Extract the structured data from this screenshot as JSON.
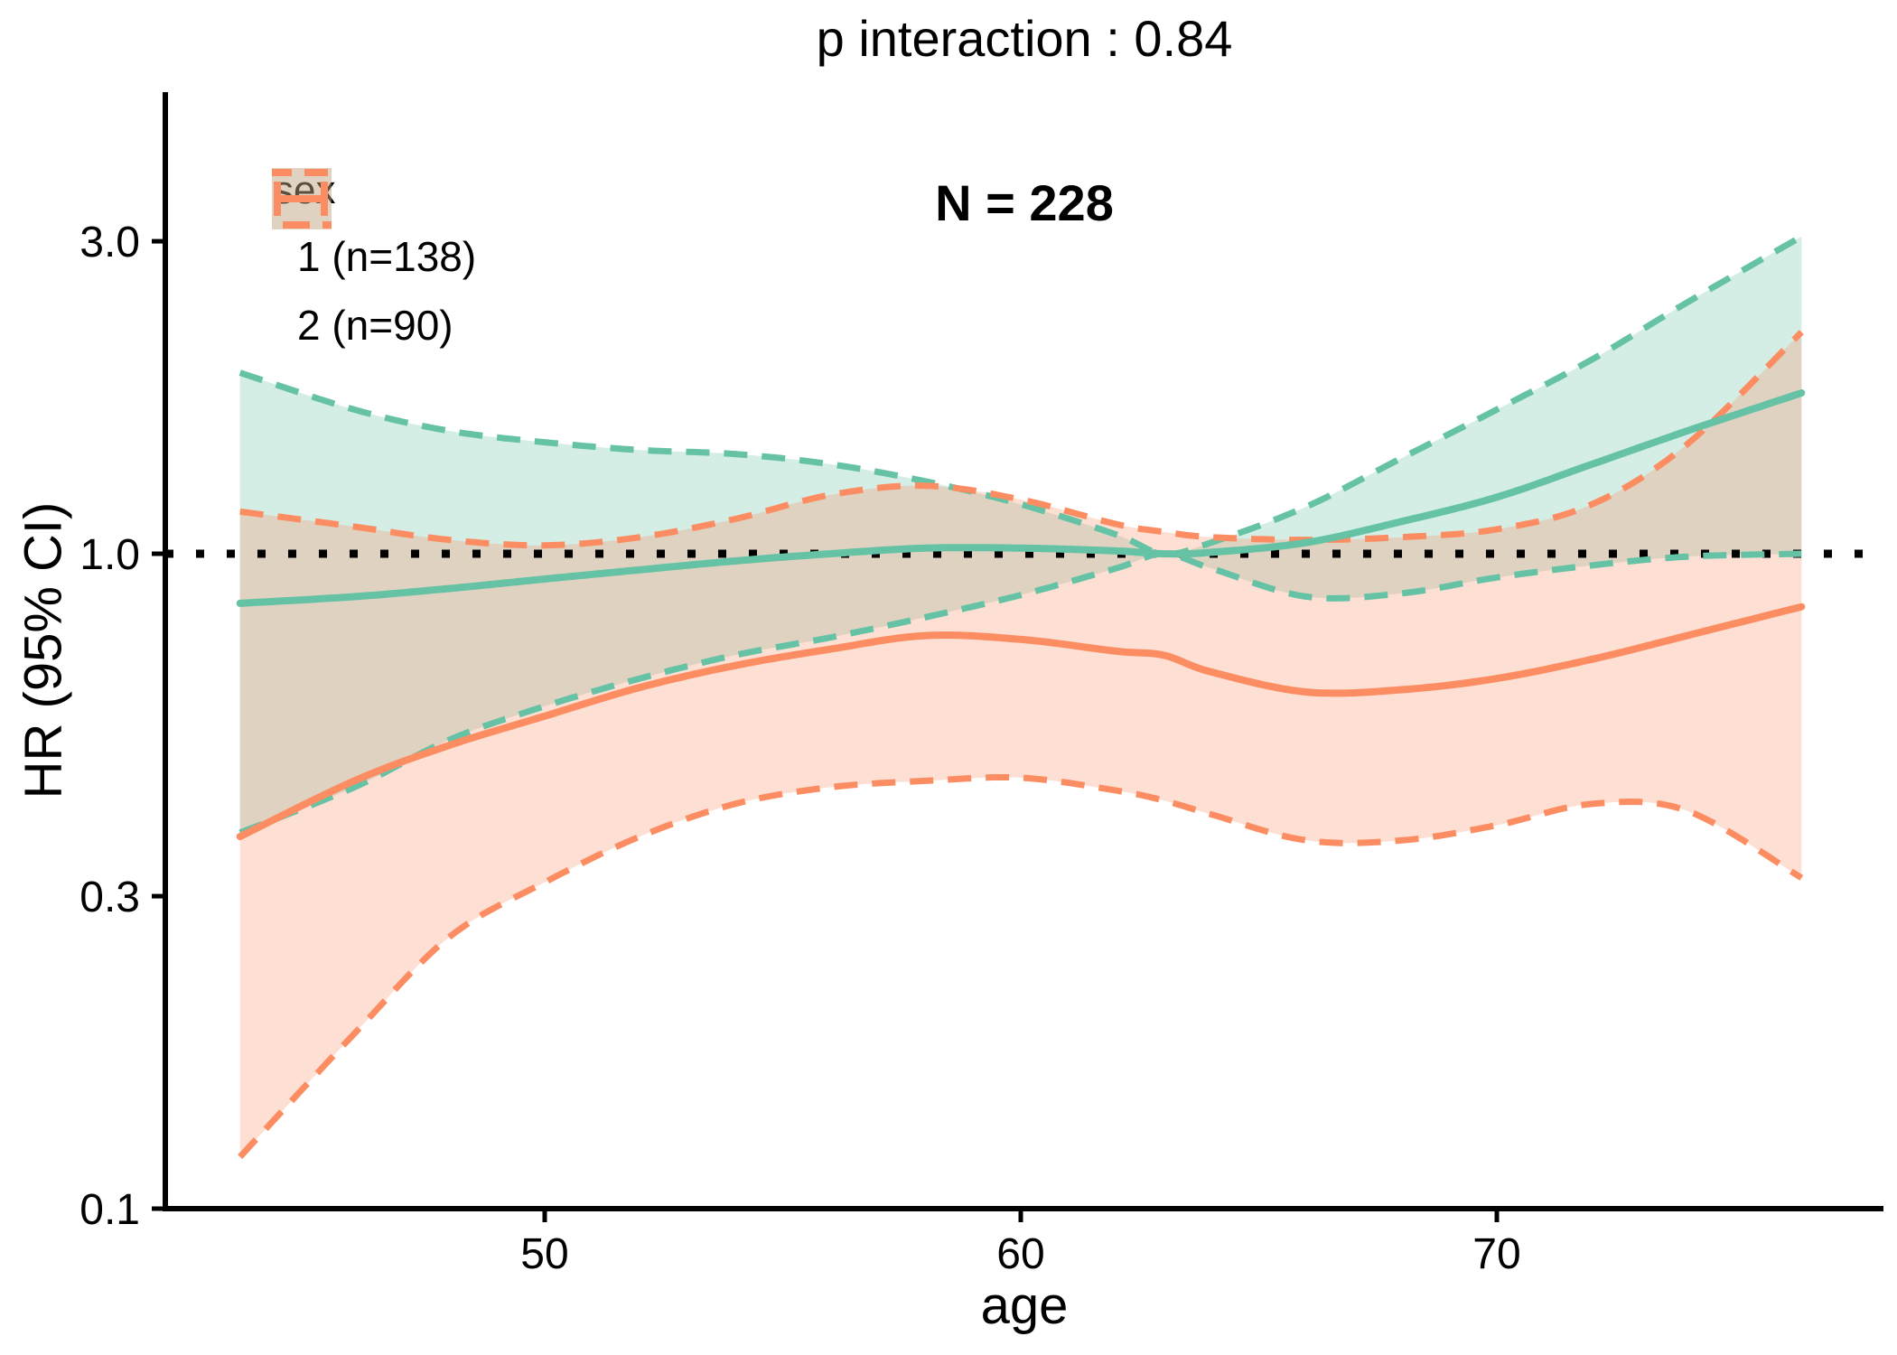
{
  "header": {
    "title": "p interaction : 0.84",
    "n_label": "N = 228"
  },
  "legend": {
    "title": "sex",
    "items": [
      {
        "label": "1 (n=138)",
        "color": "#66C2A5"
      },
      {
        "label": "2 (n=90)",
        "color": "#FC8D62"
      }
    ]
  },
  "axes": {
    "y": {
      "label": "HR (95% CI)",
      "scale": "log10",
      "ticks": [
        {
          "value": 3.0,
          "label": "3.0"
        },
        {
          "value": 1.0,
          "label": "1.0"
        },
        {
          "value": 0.3,
          "label": "0.3"
        },
        {
          "value": 0.1,
          "label": "0.1"
        }
      ]
    },
    "x": {
      "label": "age",
      "ticks": [
        {
          "value": 50,
          "label": "50"
        },
        {
          "value": 60,
          "label": "60"
        },
        {
          "value": 70,
          "label": "70"
        }
      ]
    }
  },
  "chart_data": {
    "type": "line",
    "title": "p interaction : 0.84",
    "annotation": "N = 228",
    "xlabel": "age",
    "ylabel": "HR (95% CI)",
    "y_scale": "log10",
    "x_range": [
      43.6,
      76.4
    ],
    "y_axis_range": [
      0.1,
      5.1
    ],
    "reference_line": 1.0,
    "reference_line_style": "dotted",
    "legend_position": "top-left-inside",
    "x": [
      43.6,
      46,
      48,
      50,
      52,
      54,
      56,
      58,
      60,
      62,
      63,
      64,
      66,
      68,
      70,
      72,
      74,
      76.4
    ],
    "series": [
      {
        "name": "1 (n=138)",
        "sex": "1",
        "n": 138,
        "color": "#66C2A5",
        "est": [
          0.84,
          0.86,
          0.885,
          0.915,
          0.945,
          0.975,
          1.0,
          1.02,
          1.02,
          1.01,
          1.0,
          1.005,
          1.04,
          1.12,
          1.22,
          1.37,
          1.54,
          1.76
        ],
        "upper": [
          1.89,
          1.66,
          1.54,
          1.48,
          1.44,
          1.42,
          1.37,
          1.29,
          1.19,
          1.07,
          1.0,
          1.04,
          1.18,
          1.4,
          1.66,
          1.98,
          2.42,
          3.05
        ],
        "lower": [
          0.375,
          0.44,
          0.52,
          0.585,
          0.645,
          0.7,
          0.745,
          0.8,
          0.865,
          0.95,
          1.0,
          0.95,
          0.86,
          0.87,
          0.92,
          0.96,
          0.99,
          1.0
        ]
      },
      {
        "name": "2 (n=90)",
        "sex": "2",
        "n": 90,
        "color": "#FC8D62",
        "est": [
          0.37,
          0.45,
          0.51,
          0.565,
          0.625,
          0.675,
          0.715,
          0.75,
          0.74,
          0.71,
          0.7,
          0.66,
          0.615,
          0.62,
          0.645,
          0.69,
          0.75,
          0.83
        ],
        "upper": [
          1.16,
          1.1,
          1.05,
          1.03,
          1.06,
          1.13,
          1.23,
          1.27,
          1.21,
          1.11,
          1.08,
          1.06,
          1.05,
          1.06,
          1.09,
          1.19,
          1.47,
          2.18
        ],
        "lower": [
          0.12,
          0.185,
          0.26,
          0.315,
          0.37,
          0.415,
          0.44,
          0.45,
          0.455,
          0.435,
          0.42,
          0.4,
          0.365,
          0.365,
          0.385,
          0.415,
          0.405,
          0.32
        ]
      }
    ],
    "styles": {
      "ribbon_opacity": 0.28,
      "ci_line": "dashed",
      "est_line": "solid",
      "grid": false
    }
  }
}
